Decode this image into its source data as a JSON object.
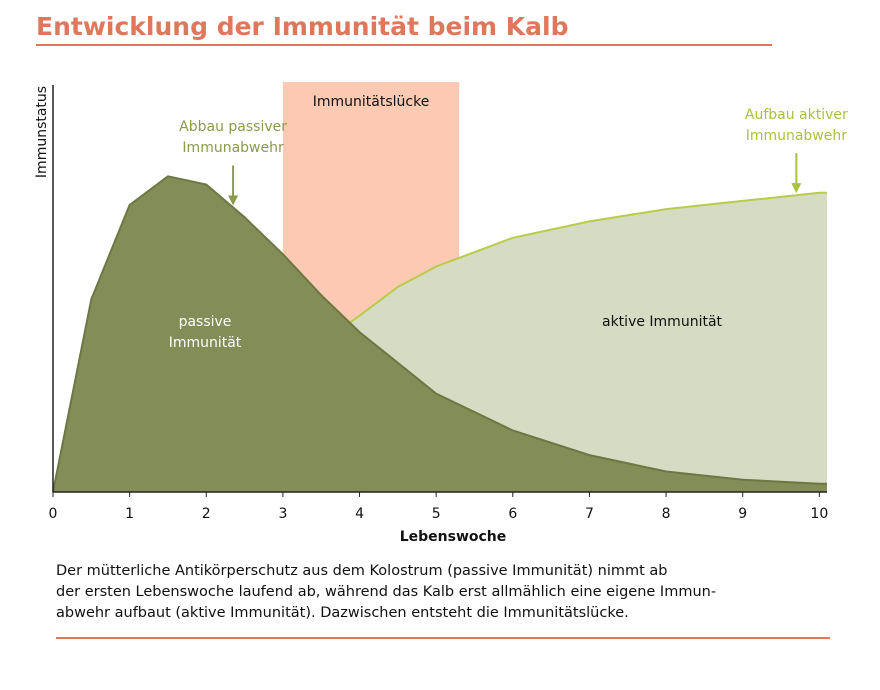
{
  "chart_data": {
    "type": "area",
    "title": "Entwicklung der Immunität beim Kalb",
    "x_label": "Lebenswoche",
    "y_label": "Immunstatus",
    "xlim": [
      0,
      10.1
    ],
    "ylim": [
      0,
      100
    ],
    "xticks": [
      0,
      1,
      2,
      3,
      4,
      5,
      6,
      7,
      8,
      9,
      10
    ],
    "gap": {
      "label": "Immunitätslücke",
      "x": [
        3,
        5.3
      ],
      "top": 100,
      "color": "#fccab3"
    },
    "series": [
      {
        "name": "passive Immunität",
        "color": "#838d58",
        "line_color": "#6d7743",
        "x": [
          0,
          0.5,
          1,
          1.5,
          2,
          2.5,
          3,
          3.5,
          4,
          5,
          6,
          7,
          8,
          9,
          10,
          10.1
        ],
        "values": [
          0,
          47,
          70,
          77,
          75,
          67,
          58,
          48,
          39,
          24,
          15,
          9,
          5,
          3,
          2,
          2
        ],
        "annotation": "Abbau passiver Immunabwehr",
        "annotation_color": "#8a9a4e",
        "annotation_x": 2.35
      },
      {
        "name": "aktive Immunität",
        "color": "#d6dbc3",
        "line_color": "#b8cc4a",
        "x": [
          3.85,
          4,
          4.5,
          5,
          6,
          7,
          8,
          9,
          10,
          10.1
        ],
        "values": [
          41,
          43,
          50,
          55,
          62,
          66,
          69,
          71,
          73,
          73
        ],
        "annotation": "Aufbau aktiver Immunabwehr",
        "annotation_color": "#a9c23c",
        "annotation_x": 9.7
      }
    ],
    "caption": [
      "Der mütterliche Antikörperschutz aus dem Kolostrum (passive Immunität) nimmt ab",
      "der ersten Lebenswoche laufend ab, während das Kalb erst allmählich eine eigene Immun-",
      "abwehr aufbaut (aktive Immunität). Dazwischen entsteht die Immunitätslücke."
    ]
  }
}
